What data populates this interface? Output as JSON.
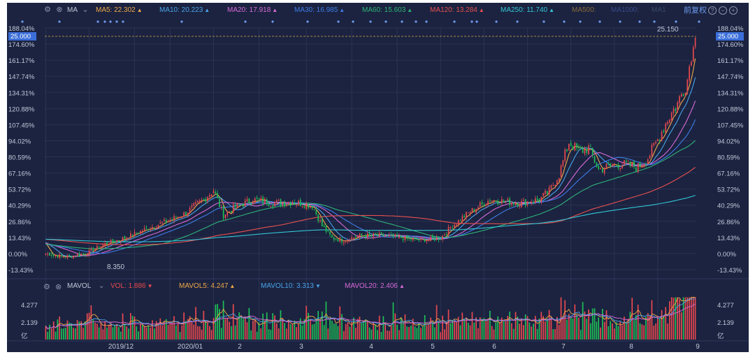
{
  "colors": {
    "bg": "#1b2340",
    "up": "#e8494f",
    "down": "#1fbf57",
    "grid": "#2a3354",
    "axis_text": "#c2c8d8"
  },
  "topbar": {
    "ma_label": "MA",
    "restore_label": "前复权",
    "items": [
      {
        "text": "MA5: 22.302",
        "color": "#f0a84a",
        "arrow": "▲"
      },
      {
        "text": "MA10: 20.223",
        "color": "#4aa3e8",
        "arrow": "▲"
      },
      {
        "text": "MA20: 17.918",
        "color": "#d96ad8",
        "arrow": "▲"
      },
      {
        "text": "MA30: 16.985",
        "color": "#3f7ce8",
        "arrow": "▲"
      },
      {
        "text": "MA60: 15.603",
        "color": "#2fb37a",
        "arrow": "▲"
      },
      {
        "text": "MA120: 13.284",
        "color": "#e85050",
        "arrow": "▲"
      },
      {
        "text": "MA250: 11.740",
        "color": "#34c6d6",
        "arrow": "▲"
      },
      {
        "text": "MA500:",
        "color": "#8a6a3a",
        "arrow": ""
      },
      {
        "text": "MA1000:",
        "color": "#3a4a8a",
        "arrow": ""
      },
      {
        "text": "MA1",
        "color": "#3a4a6a",
        "arrow": ""
      }
    ]
  },
  "volbar": {
    "label": "MAVOL",
    "items": [
      {
        "text": "VOL: 1.886",
        "color": "#e8494f",
        "arrow": "▼"
      },
      {
        "text": "MAVOL5: 4.247",
        "color": "#f0a84a",
        "arrow": "▲"
      },
      {
        "text": "MAVOL10: 3.313",
        "color": "#4aa3e8",
        "arrow": "▼"
      },
      {
        "text": "MAVOL20: 2.406",
        "color": "#d96ad8",
        "arrow": "▲"
      }
    ]
  },
  "chart_data": {
    "type": "candlestick",
    "current_price_label": "25.000",
    "high_label": "25.150",
    "low_label": "8.350",
    "y_ticks": [
      "188.04%",
      "174.60%",
      "161.17%",
      "147.74%",
      "134.31%",
      "120.88%",
      "107.45%",
      "94.02%",
      "80.59%",
      "67.16%",
      "53.72%",
      "40.29%",
      "26.86%",
      "13.43%",
      "0.00%",
      "-13.43%"
    ],
    "y_tick_values": [
      188.04,
      174.6,
      161.17,
      147.74,
      134.31,
      120.88,
      107.45,
      94.02,
      80.59,
      67.16,
      53.72,
      40.29,
      26.86,
      13.43,
      0.0,
      -13.43
    ],
    "vol_ticks": [
      "4.277",
      "2.139",
      "亿"
    ],
    "x_labels": [
      "2019/12",
      "2020/01",
      "2",
      "3",
      "4",
      "5",
      "6",
      "7",
      "8",
      "9"
    ],
    "close_pct_anchors": [
      [
        0,
        0
      ],
      [
        10,
        -3
      ],
      [
        20,
        0
      ],
      [
        30,
        8
      ],
      [
        40,
        13
      ],
      [
        50,
        20
      ],
      [
        60,
        26
      ],
      [
        70,
        33
      ],
      [
        80,
        45
      ],
      [
        85,
        53
      ],
      [
        90,
        32
      ],
      [
        95,
        38
      ],
      [
        105,
        45
      ],
      [
        115,
        42
      ],
      [
        125,
        43
      ],
      [
        135,
        40
      ],
      [
        140,
        23
      ],
      [
        145,
        13
      ],
      [
        150,
        11
      ],
      [
        160,
        15
      ],
      [
        170,
        15
      ],
      [
        180,
        13
      ],
      [
        190,
        11
      ],
      [
        200,
        13
      ],
      [
        205,
        22
      ],
      [
        215,
        35
      ],
      [
        225,
        45
      ],
      [
        240,
        42
      ],
      [
        250,
        45
      ],
      [
        255,
        52
      ],
      [
        260,
        66
      ],
      [
        265,
        93
      ],
      [
        270,
        85
      ],
      [
        275,
        88
      ],
      [
        280,
        70
      ],
      [
        290,
        75
      ],
      [
        300,
        72
      ],
      [
        305,
        80
      ],
      [
        310,
        95
      ],
      [
        315,
        112
      ],
      [
        320,
        125
      ],
      [
        325,
        145
      ],
      [
        328,
        180
      ]
    ],
    "ma_series": [
      {
        "name": "MA5",
        "color": "#f0a84a",
        "period": 5
      },
      {
        "name": "MA10",
        "color": "#4aa3e8",
        "period": 10
      },
      {
        "name": "MA20",
        "color": "#d96ad8",
        "period": 20
      },
      {
        "name": "MA30",
        "color": "#3f7ce8",
        "period": 30
      },
      {
        "name": "MA60",
        "color": "#2fb37a",
        "period": 60
      },
      {
        "name": "MA120",
        "color": "#e85050",
        "period": 120
      },
      {
        "name": "MA250",
        "color": "#34c6d6",
        "period": 250
      }
    ]
  }
}
